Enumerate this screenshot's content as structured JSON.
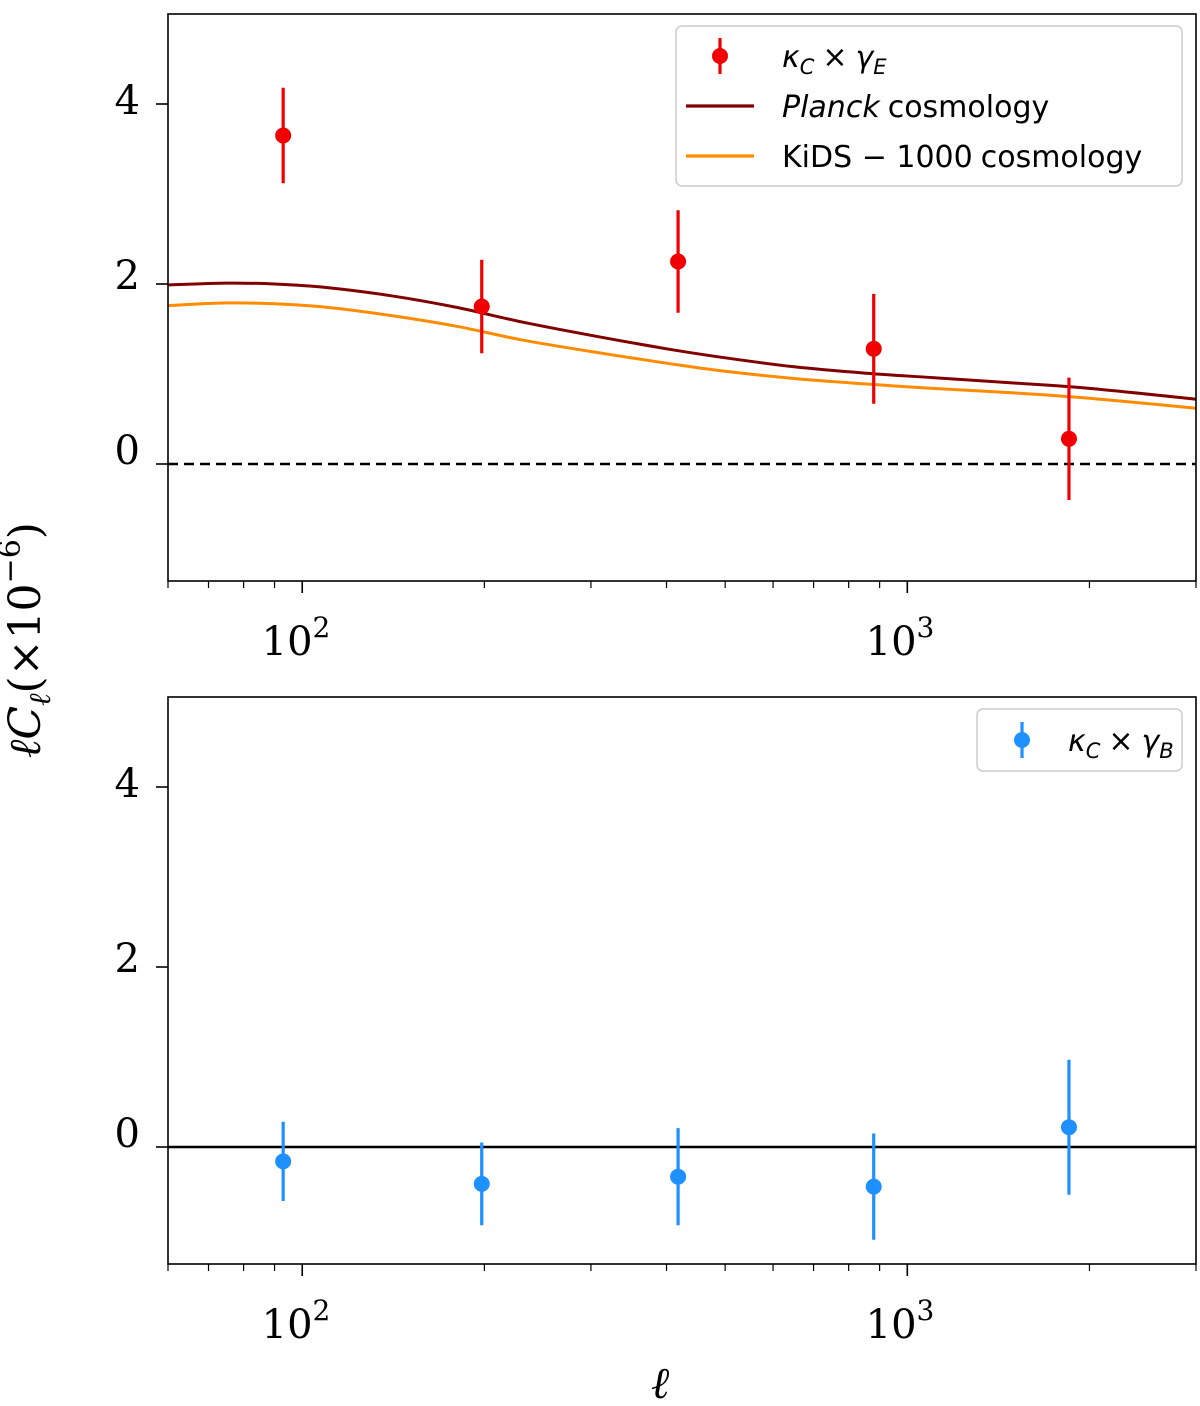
{
  "chart_data": [
    {
      "type": "scatter",
      "panel": "top",
      "xscale": "log",
      "xlim": [
        60,
        3000
      ],
      "ylim": [
        -1.3,
        5.0
      ],
      "yticks": [
        0,
        2,
        4
      ],
      "xticks_major": [
        100,
        1000
      ],
      "xtick_labels": [
        {
          "base": "10",
          "exp": "2"
        },
        {
          "base": "10",
          "exp": "3"
        }
      ],
      "reference_line": {
        "y": 0,
        "style": "dashed",
        "color": "#000000"
      },
      "series": [
        {
          "name": "κ_C × γ_E",
          "kind": "errorbar",
          "color": "#f00000",
          "x": [
            93,
            198,
            418,
            880,
            1850
          ],
          "y": [
            3.65,
            1.75,
            2.25,
            1.28,
            0.28
          ],
          "yerr": [
            0.53,
            0.52,
            0.57,
            0.61,
            0.68
          ]
        },
        {
          "name": "Planck cosmology",
          "kind": "line",
          "color": "#800000",
          "x": [
            60,
            75,
            90,
            110,
            140,
            180,
            230,
            300,
            400,
            500,
            650,
            850,
            1100,
            1500,
            2000,
            3000
          ],
          "y": [
            1.99,
            2.01,
            2.0,
            1.96,
            1.87,
            1.74,
            1.58,
            1.43,
            1.28,
            1.18,
            1.08,
            1.01,
            0.96,
            0.9,
            0.84,
            0.72
          ]
        },
        {
          "name": "KiDS − 1000 cosmology",
          "kind": "line",
          "color": "#ff8c00",
          "x": [
            60,
            75,
            90,
            110,
            140,
            180,
            230,
            300,
            400,
            500,
            650,
            850,
            1100,
            1500,
            2000,
            3000
          ],
          "y": [
            1.76,
            1.79,
            1.78,
            1.74,
            1.65,
            1.53,
            1.38,
            1.25,
            1.12,
            1.03,
            0.95,
            0.89,
            0.84,
            0.79,
            0.73,
            0.62
          ]
        }
      ],
      "legend": {
        "location": "top-right",
        "entries": [
          {
            "label": "κC × γE",
            "sub": "C",
            "sub2": "E"
          },
          {
            "label_italic": "Planck",
            "label_rest": " cosmology"
          },
          {
            "label": "KiDS − 1000 cosmology"
          }
        ]
      }
    },
    {
      "type": "scatter",
      "panel": "bottom",
      "xscale": "log",
      "xlim": [
        60,
        3000
      ],
      "ylim": [
        -1.3,
        5.0
      ],
      "yticks": [
        0,
        2,
        4
      ],
      "xticks_major": [
        100,
        1000
      ],
      "xtick_labels": [
        {
          "base": "10",
          "exp": "2"
        },
        {
          "base": "10",
          "exp": "3"
        }
      ],
      "reference_line": {
        "y": 0,
        "style": "solid",
        "color": "#000000"
      },
      "series": [
        {
          "name": "κ_C × γ_B",
          "kind": "errorbar",
          "color": "#1e90ff",
          "x": [
            93,
            198,
            418,
            880,
            1850
          ],
          "y": [
            -0.16,
            -0.41,
            -0.33,
            -0.44,
            0.22
          ],
          "yerr": [
            0.44,
            0.46,
            0.54,
            0.59,
            0.75
          ]
        }
      ],
      "legend": {
        "location": "top-right",
        "entries": [
          {
            "label": "κC × γB"
          }
        ]
      }
    }
  ],
  "labels": {
    "ylabel": "ℓCℓ(×10⁻⁶)",
    "ylabel_main": "ℓC",
    "ylabel_sub": "ℓ",
    "ylabel_paren": "(×10",
    "ylabel_exp": "−6",
    "ylabel_close": ")",
    "xlabel": "ℓ",
    "tick_0": "0",
    "tick_2": "2",
    "tick_4": "4",
    "times": "×",
    "kappa": "κ",
    "gamma": "γ",
    "sub_C": "C",
    "sub_E": "E",
    "sub_B": "B",
    "planck_italic": "Planck",
    "cosmology": "cosmology",
    "kids": "KiDS − 1000"
  }
}
